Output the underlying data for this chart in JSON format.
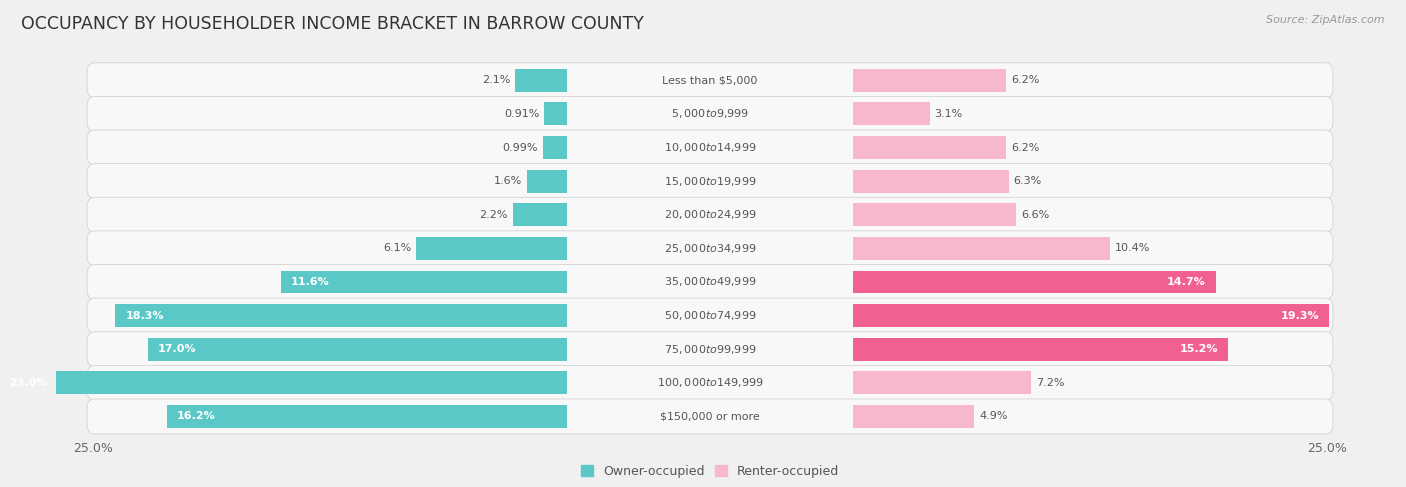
{
  "title": "OCCUPANCY BY HOUSEHOLDER INCOME BRACKET IN BARROW COUNTY",
  "source": "Source: ZipAtlas.com",
  "categories": [
    "Less than $5,000",
    "$5,000 to $9,999",
    "$10,000 to $14,999",
    "$15,000 to $19,999",
    "$20,000 to $24,999",
    "$25,000 to $34,999",
    "$35,000 to $49,999",
    "$50,000 to $74,999",
    "$75,000 to $99,999",
    "$100,000 to $149,999",
    "$150,000 or more"
  ],
  "owner_values": [
    2.1,
    0.91,
    0.99,
    1.6,
    2.2,
    6.1,
    11.6,
    18.3,
    17.0,
    23.0,
    16.2
  ],
  "renter_values": [
    6.2,
    3.1,
    6.2,
    6.3,
    6.6,
    10.4,
    14.7,
    19.3,
    15.2,
    7.2,
    4.9
  ],
  "owner_color": "#5bc8c8",
  "renter_color_light": "#f7b8ce",
  "renter_color_dark": "#f06090",
  "renter_threshold": 14.0,
  "owner_threshold": 10.0,
  "background_color": "#f0f0f0",
  "row_bg_color": "#e8e8e8",
  "bar_bg_color": "#f8f8f8",
  "axis_limit": 25.0,
  "title_fontsize": 12.5,
  "label_fontsize": 8.0,
  "value_fontsize": 8.0,
  "tick_fontsize": 9,
  "legend_fontsize": 9,
  "source_fontsize": 8
}
